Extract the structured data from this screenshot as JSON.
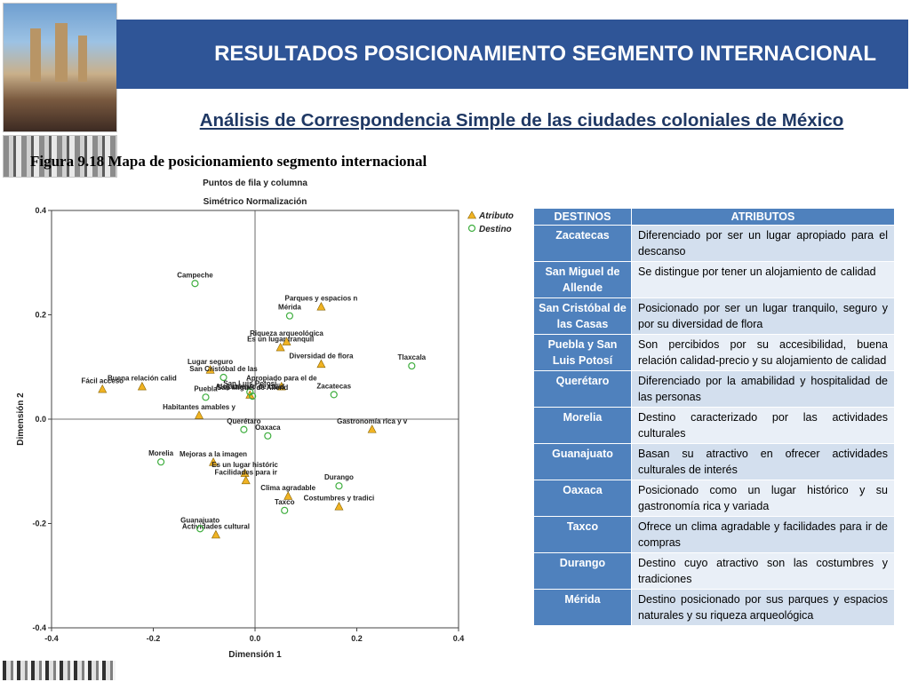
{
  "header": {
    "title": "RESULTADOS POSICIONAMIENTO SEGMENTO INTERNACIONAL",
    "subtitle": "Análisis de Correspondencia Simple de las ciudades coloniales de México",
    "figure_caption": "Figura 9.18 Mapa de posicionamiento segmento internacional"
  },
  "colors": {
    "banner": "#2f5597",
    "subtitle": "#1f3864",
    "table_header": "#4f81bd",
    "attribute_marker": "#f0b323",
    "destination_marker": "#3fae3f"
  },
  "chart_data": {
    "type": "scatter",
    "title": "Puntos de fila y columna",
    "subtitle": "Simétrico Normalización",
    "xlabel": "Dimensión 1",
    "ylabel": "Dimensión 2",
    "xlim": [
      -0.4,
      0.4
    ],
    "ylim": [
      -0.4,
      0.4
    ],
    "xticks": [
      "-0.4",
      "-0.2",
      "0.0",
      "0.2",
      "0.4"
    ],
    "yticks": [
      "0.4",
      "0.2",
      "0.0",
      "-0.2",
      "-0.4"
    ],
    "legend": {
      "placement": "top-right",
      "entries": [
        "Atributo",
        "Destino"
      ]
    },
    "series": [
      {
        "name": "Atributo",
        "marker": "triangle",
        "points": [
          {
            "label": "Parques y espacios n",
            "x": 0.13,
            "y": 0.215
          },
          {
            "label": "Riqueza arqueológica",
            "x": 0.062,
            "y": 0.148
          },
          {
            "label": "Es un lugar tranquil",
            "x": 0.05,
            "y": 0.137
          },
          {
            "label": "Diversidad de flora",
            "x": 0.13,
            "y": 0.105
          },
          {
            "label": "Lugar seguro",
            "x": -0.088,
            "y": 0.094
          },
          {
            "label": "Buena relación calid",
            "x": -0.222,
            "y": 0.062
          },
          {
            "label": "Fácil acceso",
            "x": -0.3,
            "y": 0.057
          },
          {
            "label": "Apropiado para el de",
            "x": 0.052,
            "y": 0.062
          },
          {
            "label": "Alojamiento de calid",
            "x": -0.01,
            "y": 0.046
          },
          {
            "label": "Habitantes amables y",
            "x": -0.11,
            "y": 0.007
          },
          {
            "label": "Gastronomía rica y v",
            "x": 0.23,
            "y": -0.02
          },
          {
            "label": "Mejoras a la imagen",
            "x": -0.082,
            "y": -0.083
          },
          {
            "label": "Es un lugar históric",
            "x": -0.02,
            "y": -0.104
          },
          {
            "label": "Facilidades para ir",
            "x": -0.018,
            "y": -0.118
          },
          {
            "label": "Clima agradable",
            "x": 0.065,
            "y": -0.148
          },
          {
            "label": "Costumbres y tradici",
            "x": 0.165,
            "y": -0.168
          },
          {
            "label": "Actividades cultural",
            "x": -0.077,
            "y": -0.222
          }
        ]
      },
      {
        "name": "Destino",
        "marker": "circle",
        "points": [
          {
            "label": "Campeche",
            "x": -0.118,
            "y": 0.26
          },
          {
            "label": "Mérida",
            "x": 0.068,
            "y": 0.198
          },
          {
            "label": "Tlaxcala",
            "x": 0.308,
            "y": 0.102
          },
          {
            "label": "San Cristóbal de las",
            "x": -0.062,
            "y": 0.08
          },
          {
            "label": "Zacatecas",
            "x": 0.155,
            "y": 0.047
          },
          {
            "label": "Puebla",
            "x": -0.097,
            "y": 0.042
          },
          {
            "label": "San Luis Potosí",
            "x": -0.01,
            "y": 0.052
          },
          {
            "label": "San Miguel de Allend",
            "x": -0.005,
            "y": 0.044
          },
          {
            "label": "Querétaro",
            "x": -0.022,
            "y": -0.02
          },
          {
            "label": "Oaxaca",
            "x": 0.025,
            "y": -0.032
          },
          {
            "label": "Morelia",
            "x": -0.185,
            "y": -0.082
          },
          {
            "label": "Durango",
            "x": 0.165,
            "y": -0.128
          },
          {
            "label": "Taxco",
            "x": 0.058,
            "y": -0.175
          },
          {
            "label": "Guanajuato",
            "x": -0.108,
            "y": -0.21
          }
        ]
      }
    ]
  },
  "table": {
    "headers": [
      "DESTINOS",
      "ATRIBUTOS"
    ],
    "rows": [
      {
        "destino": "Zacatecas",
        "atributo": "Diferenciado por ser un lugar apropiado para el descanso"
      },
      {
        "destino": "San Miguel de Allende",
        "atributo": "Se distingue por tener un alojamiento de calidad"
      },
      {
        "destino": "San Cristóbal de las Casas",
        "atributo": "Posicionado por ser un lugar tranquilo, seguro y por su diversidad de flora"
      },
      {
        "destino": "Puebla y San Luis Potosí",
        "atributo": "Son percibidos por su accesibilidad, buena relación calidad-precio y su alojamiento de calidad"
      },
      {
        "destino": "Querétaro",
        "atributo": "Diferenciado por la amabilidad y hospitalidad de las personas"
      },
      {
        "destino": "Morelia",
        "atributo": "Destino caracterizado por las actividades culturales"
      },
      {
        "destino": "Guanajuato",
        "atributo": "Basan su atractivo en ofrecer actividades culturales de interés"
      },
      {
        "destino": "Oaxaca",
        "atributo": "Posicionado como un lugar histórico y su gastronomía rica y variada"
      },
      {
        "destino": "Taxco",
        "atributo": "Ofrece un clima agradable y facilidades para ir de compras"
      },
      {
        "destino": "Durango",
        "atributo": "Destino cuyo atractivo son las costumbres y tradiciones"
      },
      {
        "destino": "Mérida",
        "atributo": "Destino posicionado por sus parques y espacios naturales y su riqueza arqueológica"
      }
    ]
  }
}
